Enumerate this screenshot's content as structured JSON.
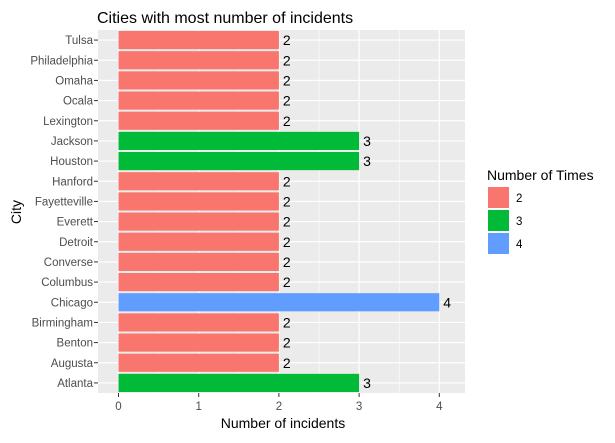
{
  "chart_data": {
    "type": "bar",
    "orientation": "horizontal",
    "title": "Cities with most number of incidents",
    "xlabel": "Number of incidents",
    "ylabel": "City",
    "xlim": [
      0,
      4.2
    ],
    "xticks": [
      0,
      1,
      2,
      3,
      4
    ],
    "categories": [
      "Atlanta",
      "Augusta",
      "Benton",
      "Birmingham",
      "Chicago",
      "Columbus",
      "Converse",
      "Detroit",
      "Everett",
      "Fayetteville",
      "Hanford",
      "Houston",
      "Jackson",
      "Lexington",
      "Ocala",
      "Omaha",
      "Philadelphia",
      "Tulsa"
    ],
    "values": [
      3,
      2,
      2,
      2,
      4,
      2,
      2,
      2,
      2,
      2,
      2,
      3,
      3,
      2,
      2,
      2,
      2,
      2
    ],
    "fill_group": [
      3,
      2,
      2,
      2,
      4,
      2,
      2,
      2,
      2,
      2,
      2,
      3,
      3,
      2,
      2,
      2,
      2,
      2
    ],
    "data_labels": true,
    "grid": true,
    "legend": {
      "title": "Number of Times",
      "position": "right",
      "entries": [
        {
          "label": "2",
          "color": "#F8766D"
        },
        {
          "label": "3",
          "color": "#00BA38"
        },
        {
          "label": "4",
          "color": "#619CFF"
        }
      ]
    },
    "colors": {
      "2": "#F8766D",
      "3": "#00BA38",
      "4": "#619CFF",
      "panel": "#EBEBEB",
      "grid": "#FFFFFF"
    }
  }
}
